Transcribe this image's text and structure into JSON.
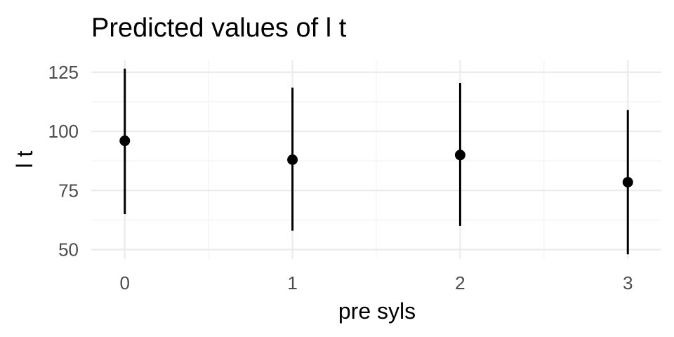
{
  "chart_data": {
    "type": "scatter",
    "title": "Predicted values of l t",
    "xlabel": "pre syls",
    "ylabel": "l t",
    "x": [
      0,
      1,
      2,
      3
    ],
    "x_ticks": [
      "0",
      "1",
      "2",
      "3"
    ],
    "y_ticks": [
      50,
      75,
      100,
      125
    ],
    "xlim": [
      -0.2,
      3.2
    ],
    "ylim": [
      46,
      130
    ],
    "grid": true,
    "legend": "none",
    "series": [
      {
        "values": [
          96,
          88,
          90,
          78.5
        ],
        "ci_low": [
          65,
          58,
          60,
          48
        ],
        "ci_high": [
          126.5,
          118.5,
          120.5,
          109
        ]
      }
    ]
  }
}
